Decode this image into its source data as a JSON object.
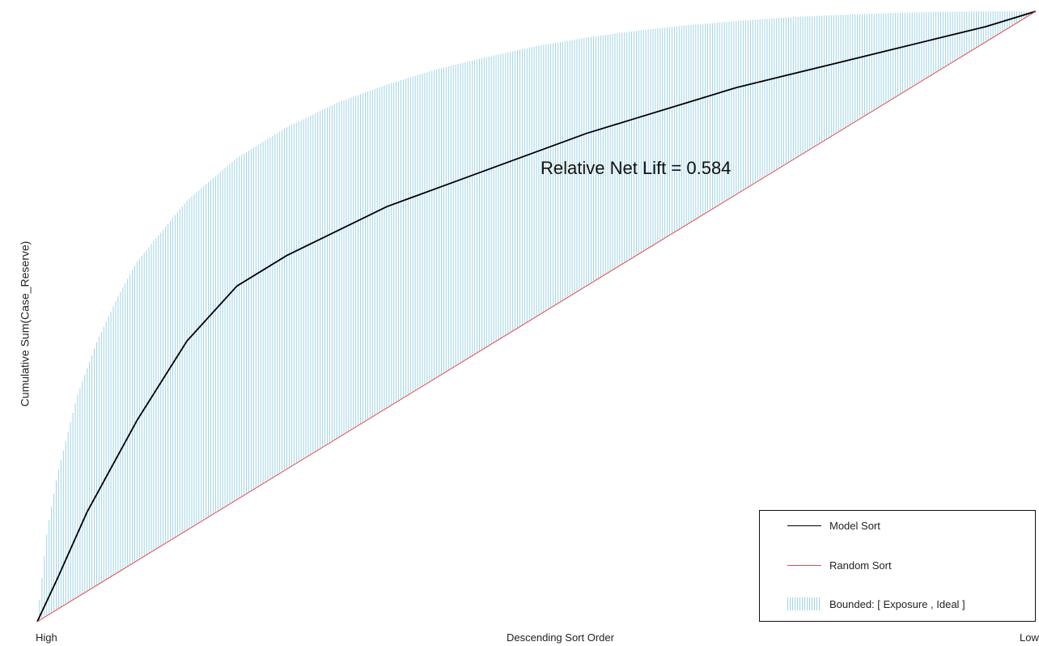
{
  "chart_data": {
    "type": "line",
    "title": "",
    "xlabel": "Descending Sort Order",
    "ylabel": "Cumulative Sum(Case_Reserve)",
    "x_tick_labels": {
      "start": "High",
      "end": "Low"
    },
    "xlim": [
      0,
      1
    ],
    "ylim": [
      0,
      1
    ],
    "annotation": "Relative Net Lift = 0.584",
    "grid": false,
    "legend_position": "bottom-right",
    "series": [
      {
        "name": "Model Sort",
        "color": "#000000",
        "x": [
          0,
          0.02,
          0.05,
          0.08,
          0.1,
          0.15,
          0.2,
          0.25,
          0.3,
          0.35,
          0.4,
          0.45,
          0.5,
          0.55,
          0.6,
          0.65,
          0.7,
          0.75,
          0.8,
          0.85,
          0.9,
          0.95,
          1
        ],
        "y": [
          0,
          0.07,
          0.18,
          0.27,
          0.33,
          0.46,
          0.55,
          0.6,
          0.64,
          0.68,
          0.71,
          0.74,
          0.77,
          0.8,
          0.825,
          0.85,
          0.875,
          0.895,
          0.915,
          0.935,
          0.955,
          0.975,
          1
        ]
      },
      {
        "name": "Random Sort",
        "color": "#e05050",
        "x": [
          0,
          1
        ],
        "y": [
          0,
          1
        ]
      },
      {
        "name": "Bounded: [ Exposure , Ideal ]",
        "color": "#9fd3e3",
        "type": "band",
        "x": [
          0,
          0.01,
          0.02,
          0.04,
          0.06,
          0.08,
          0.1,
          0.15,
          0.2,
          0.25,
          0.3,
          0.35,
          0.4,
          0.45,
          0.5,
          0.55,
          0.6,
          0.65,
          0.7,
          0.75,
          0.8,
          0.85,
          0.9,
          0.95,
          1
        ],
        "upper": [
          0,
          0.15,
          0.24,
          0.37,
          0.46,
          0.53,
          0.59,
          0.69,
          0.76,
          0.81,
          0.85,
          0.88,
          0.905,
          0.925,
          0.943,
          0.957,
          0.968,
          0.977,
          0.984,
          0.99,
          0.994,
          0.997,
          0.999,
          1.0,
          1.0
        ]
      }
    ]
  },
  "legend": {
    "items": [
      {
        "label": "Model Sort",
        "kind": "line",
        "color": "#000000"
      },
      {
        "label": "Random Sort",
        "kind": "line",
        "color": "#e05050"
      },
      {
        "label": "Bounded: [ Exposure , Ideal ]",
        "kind": "bars",
        "color": "#9fd3e3"
      }
    ]
  }
}
